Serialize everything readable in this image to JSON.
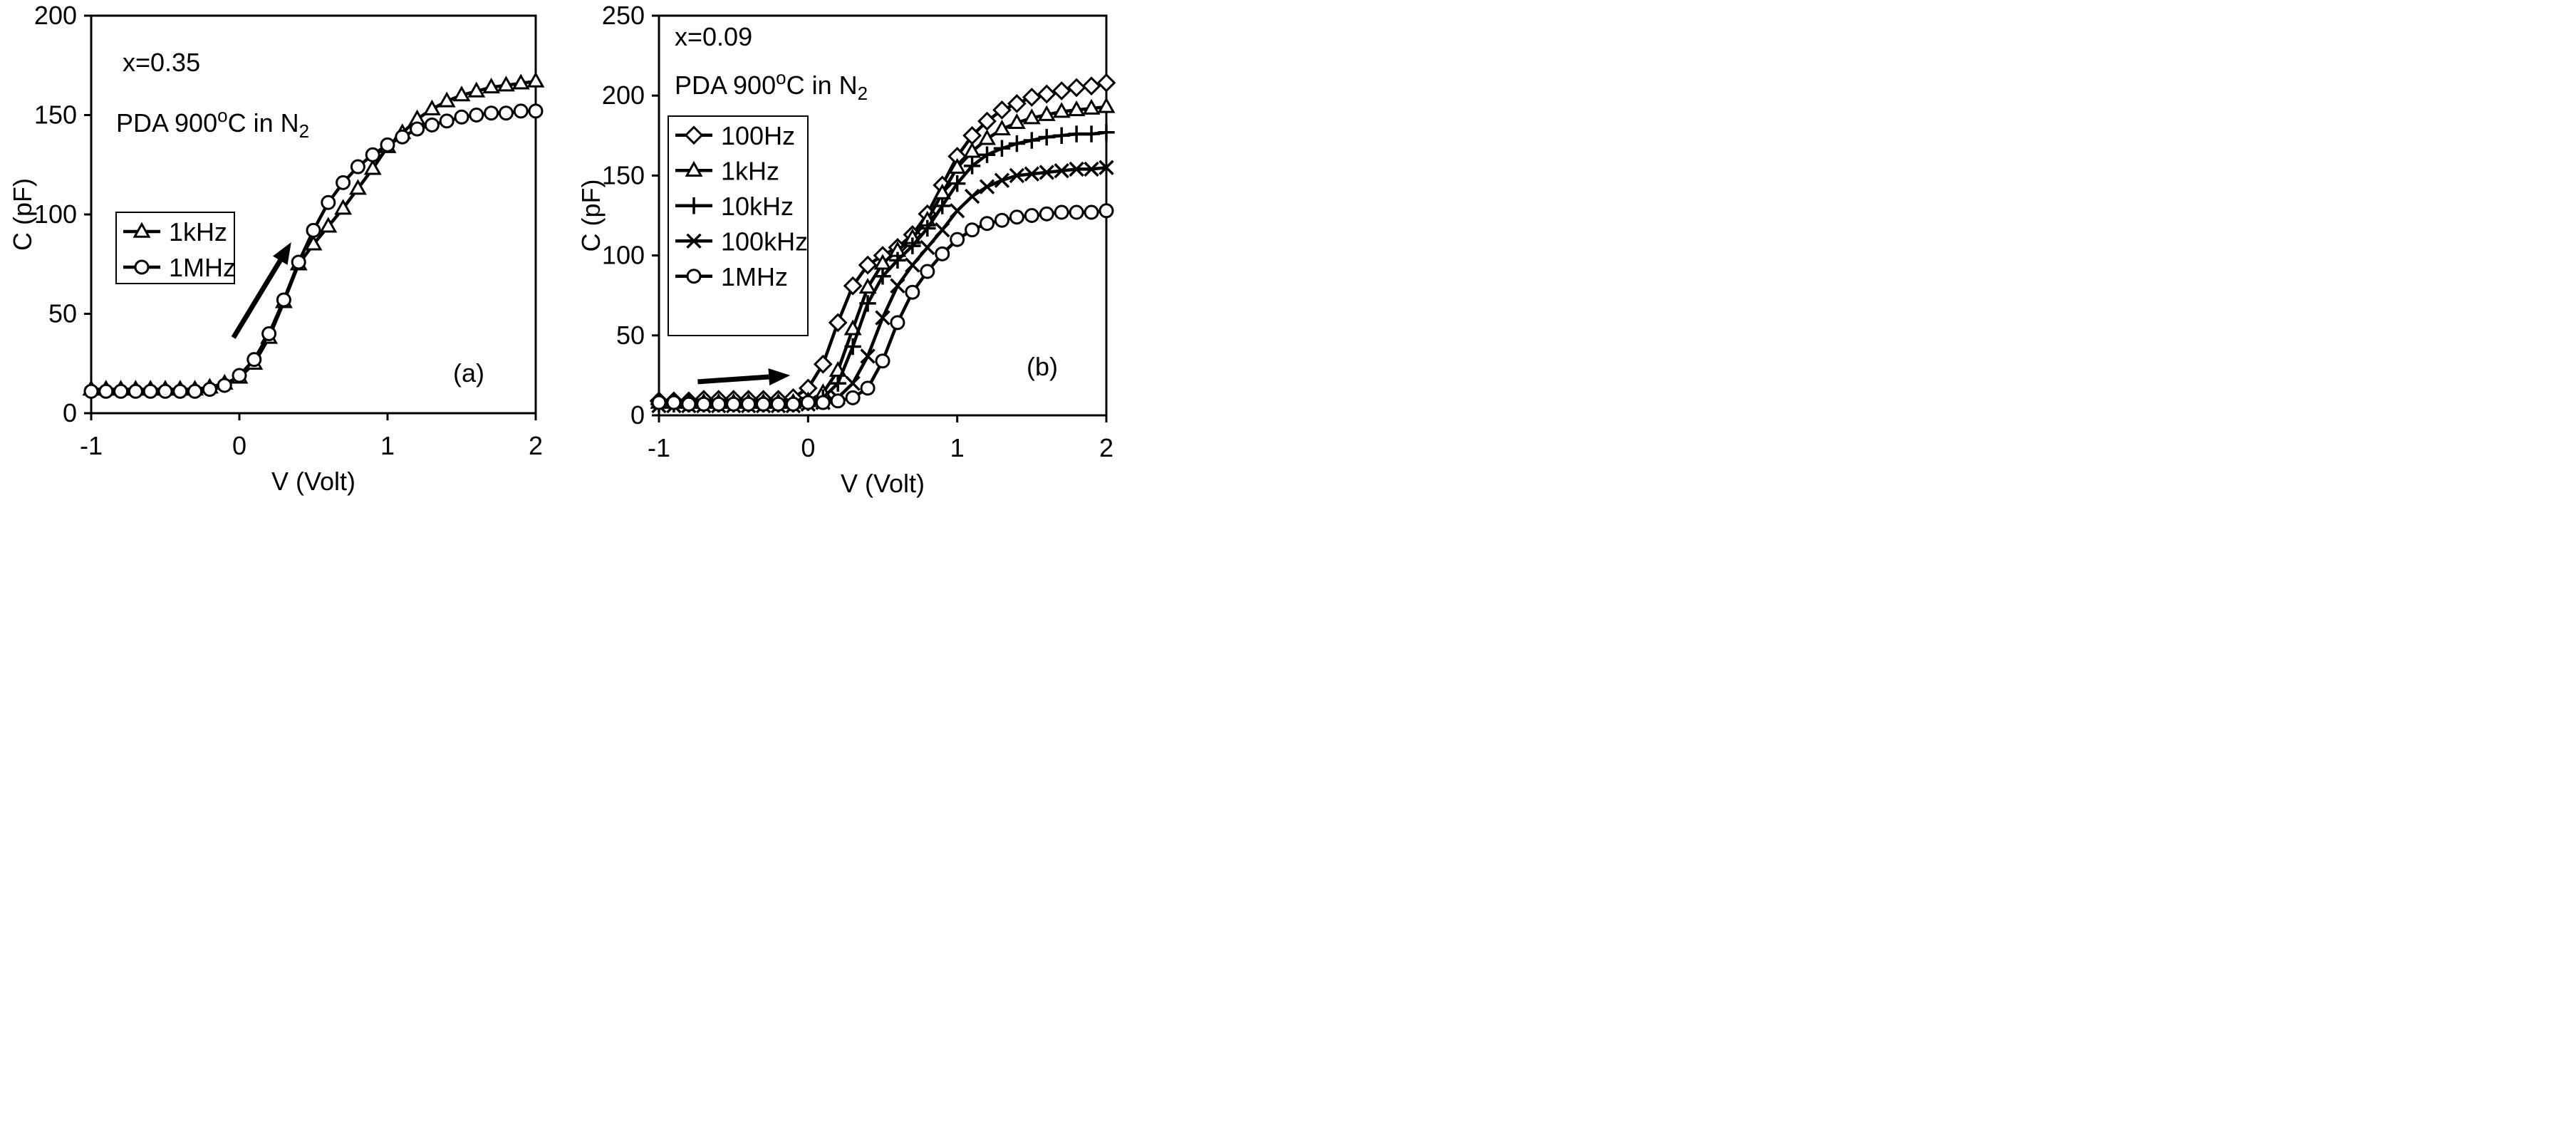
{
  "chart_data": [
    {
      "panel": "(a)",
      "type": "line",
      "xlabel": "V (Volt)",
      "ylabel": "C (pF)",
      "xlim": [
        -1,
        2
      ],
      "ylim": [
        0,
        200
      ],
      "xticks": [
        -1,
        0,
        1,
        2
      ],
      "yticks": [
        0,
        50,
        100,
        150,
        200
      ],
      "annotations": {
        "composition": "x=0.35",
        "pda_main": "PDA 900",
        "pda_deg": "o",
        "pda_rest": "C in N",
        "pda_sub": "2",
        "panel_label": "(a)"
      },
      "series": [
        {
          "name": "1kHz",
          "marker": "triangle",
          "x": [
            -1,
            -0.9,
            -0.8,
            -0.7,
            -0.6,
            -0.5,
            -0.4,
            -0.3,
            -0.2,
            -0.1,
            0,
            0.1,
            0.2,
            0.3,
            0.4,
            0.5,
            0.6,
            0.7,
            0.8,
            0.9,
            1,
            1.1,
            1.2,
            1.3,
            1.4,
            1.5,
            1.6,
            1.7,
            1.8,
            1.9,
            2
          ],
          "y": [
            12,
            12,
            12,
            12,
            12,
            12,
            12,
            12,
            13,
            15,
            18,
            25,
            38,
            56,
            75,
            85,
            94,
            103,
            113,
            123,
            134,
            141,
            148,
            153,
            157,
            160,
            162,
            164,
            165,
            166,
            167
          ]
        },
        {
          "name": "1MHz",
          "marker": "circle",
          "x": [
            -1,
            -0.9,
            -0.8,
            -0.7,
            -0.6,
            -0.5,
            -0.4,
            -0.3,
            -0.2,
            -0.1,
            0,
            0.1,
            0.2,
            0.3,
            0.4,
            0.5,
            0.6,
            0.7,
            0.8,
            0.9,
            1,
            1.1,
            1.2,
            1.3,
            1.4,
            1.5,
            1.6,
            1.7,
            1.8,
            1.9,
            2
          ],
          "y": [
            11,
            11,
            11,
            11,
            11,
            11,
            11,
            11,
            12,
            14,
            19,
            27,
            40,
            57,
            76,
            92,
            106,
            116,
            124,
            130,
            135,
            139,
            143,
            145,
            147,
            149,
            150,
            151,
            151,
            152,
            152
          ]
        }
      ]
    },
    {
      "panel": "(b)",
      "type": "line",
      "xlabel": "V (Volt)",
      "ylabel": "C (pF)",
      "xlim": [
        -1,
        2
      ],
      "ylim": [
        0,
        250
      ],
      "xticks": [
        -1,
        0,
        1,
        2
      ],
      "yticks": [
        0,
        50,
        100,
        150,
        200,
        250
      ],
      "annotations": {
        "composition": "x=0.09",
        "pda_main": "PDA 900",
        "pda_deg": "o",
        "pda_rest": "C in N",
        "pda_sub": "2",
        "panel_label": "(b)"
      },
      "series": [
        {
          "name": "100Hz",
          "marker": "diamond",
          "x": [
            -1,
            -0.9,
            -0.8,
            -0.7,
            -0.6,
            -0.5,
            -0.4,
            -0.3,
            -0.2,
            -0.1,
            0,
            0.1,
            0.2,
            0.3,
            0.4,
            0.5,
            0.6,
            0.7,
            0.8,
            0.9,
            1,
            1.1,
            1.2,
            1.3,
            1.4,
            1.5,
            1.6,
            1.7,
            1.8,
            1.9,
            2
          ],
          "y": [
            9,
            9,
            9,
            10,
            10,
            10,
            10,
            10,
            10,
            11,
            17,
            32,
            58,
            81,
            94,
            100,
            105,
            113,
            126,
            144,
            162,
            175,
            184,
            191,
            195,
            199,
            201,
            203,
            205,
            206,
            208
          ]
        },
        {
          "name": "1kHz",
          "marker": "triangle",
          "x": [
            -1,
            -0.9,
            -0.8,
            -0.7,
            -0.6,
            -0.5,
            -0.4,
            -0.3,
            -0.2,
            -0.1,
            0,
            0.1,
            0.2,
            0.3,
            0.4,
            0.5,
            0.6,
            0.7,
            0.8,
            0.9,
            1,
            1.1,
            1.2,
            1.3,
            1.4,
            1.5,
            1.6,
            1.7,
            1.8,
            1.9,
            2
          ],
          "y": [
            8,
            8,
            8,
            8,
            8,
            8,
            8,
            8,
            8,
            8,
            9,
            14,
            28,
            54,
            80,
            95,
            103,
            111,
            122,
            139,
            155,
            165,
            173,
            179,
            183,
            186,
            188,
            190,
            191,
            192,
            193
          ]
        },
        {
          "name": "10kHz",
          "marker": "plus",
          "x": [
            -1,
            -0.9,
            -0.8,
            -0.7,
            -0.6,
            -0.5,
            -0.4,
            -0.3,
            -0.2,
            -0.1,
            0,
            0.1,
            0.2,
            0.3,
            0.4,
            0.5,
            0.6,
            0.7,
            0.8,
            0.9,
            1,
            1.1,
            1.2,
            1.3,
            1.4,
            1.5,
            1.6,
            1.7,
            1.8,
            1.9,
            2
          ],
          "y": [
            7,
            7,
            7,
            7,
            7,
            7,
            7,
            7,
            7,
            7,
            8,
            11,
            20,
            43,
            70,
            87,
            97,
            106,
            117,
            131,
            145,
            156,
            163,
            167,
            170,
            172,
            174,
            175,
            176,
            176,
            177
          ]
        },
        {
          "name": "100kHz",
          "marker": "cross",
          "x": [
            -1,
            -0.9,
            -0.8,
            -0.7,
            -0.6,
            -0.5,
            -0.4,
            -0.3,
            -0.2,
            -0.1,
            0,
            0.1,
            0.2,
            0.3,
            0.4,
            0.5,
            0.6,
            0.7,
            0.8,
            0.9,
            1,
            1.1,
            1.2,
            1.3,
            1.4,
            1.5,
            1.6,
            1.7,
            1.8,
            1.9,
            2
          ],
          "y": [
            6,
            6,
            6,
            6,
            6,
            6,
            6,
            6,
            6,
            6,
            7,
            8,
            11,
            20,
            37,
            61,
            81,
            94,
            105,
            116,
            128,
            137,
            143,
            147,
            150,
            151,
            152,
            153,
            154,
            154,
            155
          ]
        },
        {
          "name": "1MHz",
          "marker": "circle",
          "x": [
            -1,
            -0.9,
            -0.8,
            -0.7,
            -0.6,
            -0.5,
            -0.4,
            -0.3,
            -0.2,
            -0.1,
            0,
            0.1,
            0.2,
            0.3,
            0.4,
            0.5,
            0.6,
            0.7,
            0.8,
            0.9,
            1,
            1.1,
            1.2,
            1.3,
            1.4,
            1.5,
            1.6,
            1.7,
            1.8,
            1.9,
            2
          ],
          "y": [
            8,
            8,
            7,
            7,
            7,
            7,
            7,
            7,
            7,
            7,
            8,
            8,
            9,
            11,
            17,
            34,
            58,
            77,
            90,
            101,
            110,
            116,
            120,
            122,
            124,
            125,
            126,
            127,
            127,
            127,
            128
          ]
        }
      ]
    }
  ]
}
